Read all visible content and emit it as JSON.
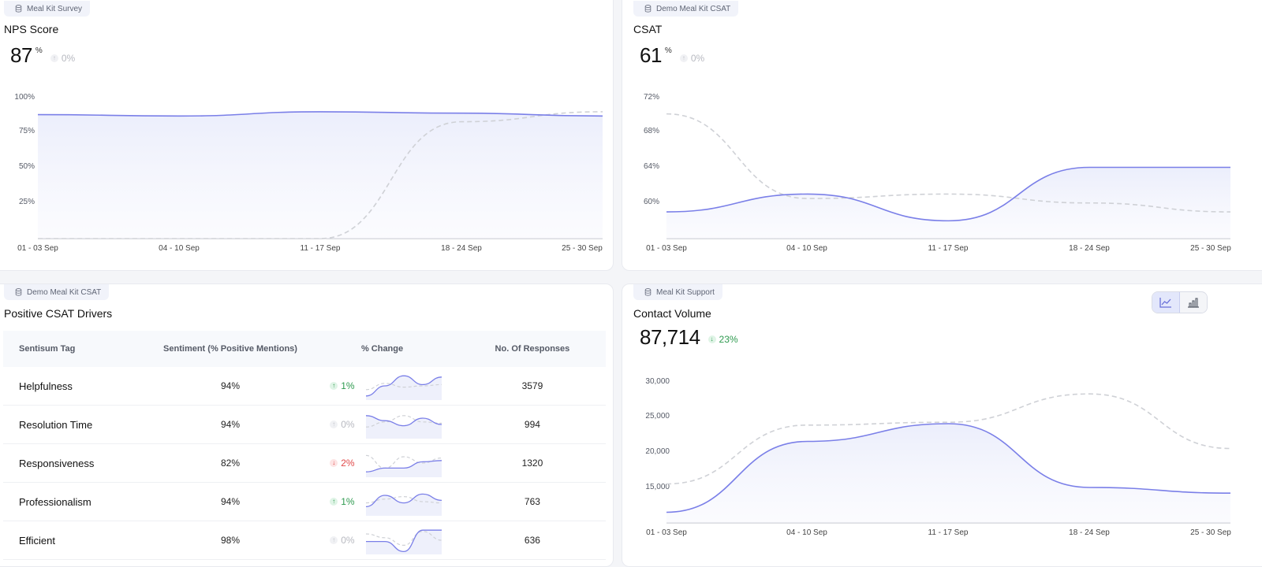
{
  "colors": {
    "primary_line": "#7a7fe8",
    "comparison_line": "#cfd1d6",
    "positive": "#2e9a4f",
    "negative": "#e04848",
    "neutral": "#b7b9c0"
  },
  "nps": {
    "source": "Meal Kit Survey",
    "title": "NPS Score",
    "value": "87",
    "unit": "%",
    "delta": "0%",
    "delta_dir": "neutral"
  },
  "csat": {
    "source": "Demo Meal Kit CSAT",
    "title": "CSAT",
    "value": "61",
    "unit": "%",
    "delta": "0%",
    "delta_dir": "neutral"
  },
  "drivers": {
    "source": "Demo Meal Kit CSAT",
    "title": "Positive CSAT Drivers",
    "columns": [
      "Sentisum Tag",
      "Sentiment (% Positive Mentions)",
      "% Change",
      "No. Of Responses"
    ],
    "rows": [
      {
        "tag": "Helpfulness",
        "sentiment": "94%",
        "change": "1%",
        "dir": "up",
        "responses": "3579",
        "spark": [
          0.1,
          0.5,
          0.9,
          0.55,
          0.85
        ],
        "spark_prev": [
          0.35,
          0.6,
          0.45,
          0.5,
          0.55
        ]
      },
      {
        "tag": "Resolution Time",
        "sentiment": "94%",
        "change": "0%",
        "dir": "neutral",
        "responses": "994",
        "spark": [
          0.85,
          0.65,
          0.45,
          0.75,
          0.5
        ],
        "spark_prev": [
          0.4,
          0.6,
          0.85,
          0.6,
          0.55
        ]
      },
      {
        "tag": "Responsiveness",
        "sentiment": "82%",
        "change": "2%",
        "dir": "down",
        "responses": "1320",
        "spark": [
          0.15,
          0.3,
          0.3,
          0.55,
          0.6
        ],
        "spark_prev": [
          0.8,
          0.3,
          0.75,
          0.5,
          0.7
        ]
      },
      {
        "tag": "Professionalism",
        "sentiment": "94%",
        "change": "1%",
        "dir": "up",
        "responses": "763",
        "spark": [
          0.3,
          0.75,
          0.45,
          0.8,
          0.55
        ],
        "spark_prev": [
          0.45,
          0.6,
          0.7,
          0.5,
          0.45
        ]
      },
      {
        "tag": "Efficient",
        "sentiment": "98%",
        "change": "0%",
        "dir": "neutral",
        "responses": "636",
        "spark": [
          0.45,
          0.45,
          0.05,
          0.9,
          0.9
        ],
        "spark_prev": [
          0.75,
          0.6,
          0.3,
          0.85,
          0.5
        ]
      }
    ]
  },
  "contact": {
    "source": "Meal Kit Support",
    "title": "Contact Volume",
    "value": "87,714",
    "delta": "23%",
    "delta_dir": "up",
    "view_options": [
      "line-chart-icon",
      "bar-chart-icon"
    ]
  },
  "chart_data": [
    {
      "id": "nps",
      "type": "area",
      "categories": [
        "01 - 03 Sep",
        "04 - 10 Sep",
        "11 - 17 Sep",
        "18 - 24 Sep",
        "25 - 30 Sep"
      ],
      "y_ticks": [
        "25%",
        "50%",
        "75%",
        "100%"
      ],
      "ylim": [
        0,
        100
      ],
      "series": [
        {
          "values": [
            87,
            86,
            89,
            88,
            86
          ]
        },
        {
          "values": [
            0,
            0,
            0,
            82,
            89
          ]
        }
      ]
    },
    {
      "id": "csat",
      "type": "area",
      "categories": [
        "01 - 03 Sep",
        "04 - 10 Sep",
        "11 - 17 Sep",
        "18 - 24 Sep",
        "25 - 30 Sep"
      ],
      "y_ticks": [
        "60%",
        "64%",
        "68%",
        "72%"
      ],
      "ylim": [
        56,
        72
      ],
      "series": [
        {
          "values": [
            59,
            61,
            58,
            64,
            64
          ]
        },
        {
          "values": [
            70,
            60.5,
            61,
            60,
            59
          ]
        }
      ]
    },
    {
      "id": "contact",
      "type": "area",
      "categories": [
        "01 - 03 Sep",
        "04 - 10 Sep",
        "11 - 17 Sep",
        "18 - 24 Sep",
        "25 - 30 Sep"
      ],
      "y_ticks": [
        "15,000",
        "20,000",
        "25,000",
        "30,000"
      ],
      "ylim": [
        10000,
        30000
      ],
      "series": [
        {
          "values": [
            11500,
            21500,
            24000,
            15000,
            14200
          ]
        },
        {
          "values": [
            15500,
            23800,
            24200,
            28200,
            20500
          ]
        }
      ]
    }
  ]
}
